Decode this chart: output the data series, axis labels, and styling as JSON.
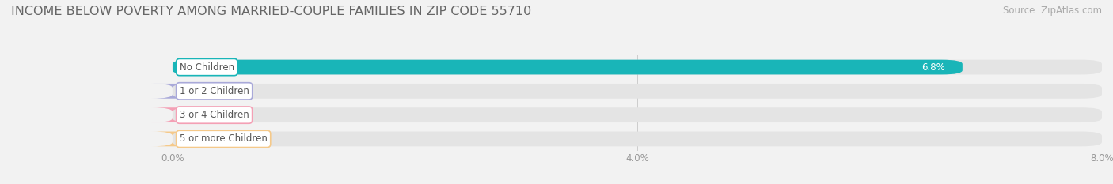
{
  "title": "INCOME BELOW POVERTY AMONG MARRIED-COUPLE FAMILIES IN ZIP CODE 55710",
  "source": "Source: ZipAtlas.com",
  "categories": [
    "No Children",
    "1 or 2 Children",
    "3 or 4 Children",
    "5 or more Children"
  ],
  "values": [
    6.8,
    0.0,
    0.0,
    0.0
  ],
  "bar_colors": [
    "#19b5b8",
    "#a9a9d9",
    "#f4a0b5",
    "#f5c98a"
  ],
  "xlim": [
    0,
    8.0
  ],
  "xticks": [
    0.0,
    4.0,
    8.0
  ],
  "xticklabels": [
    "0.0%",
    "4.0%",
    "8.0%"
  ],
  "background_color": "#f2f2f2",
  "bar_bg_color": "#e4e4e4",
  "title_fontsize": 11.5,
  "source_fontsize": 8.5,
  "tick_fontsize": 8.5,
  "label_fontsize": 8.5,
  "value_fontsize": 8.5,
  "bar_height": 0.62,
  "fig_width": 14.06,
  "fig_height": 2.33,
  "dpi": 100
}
